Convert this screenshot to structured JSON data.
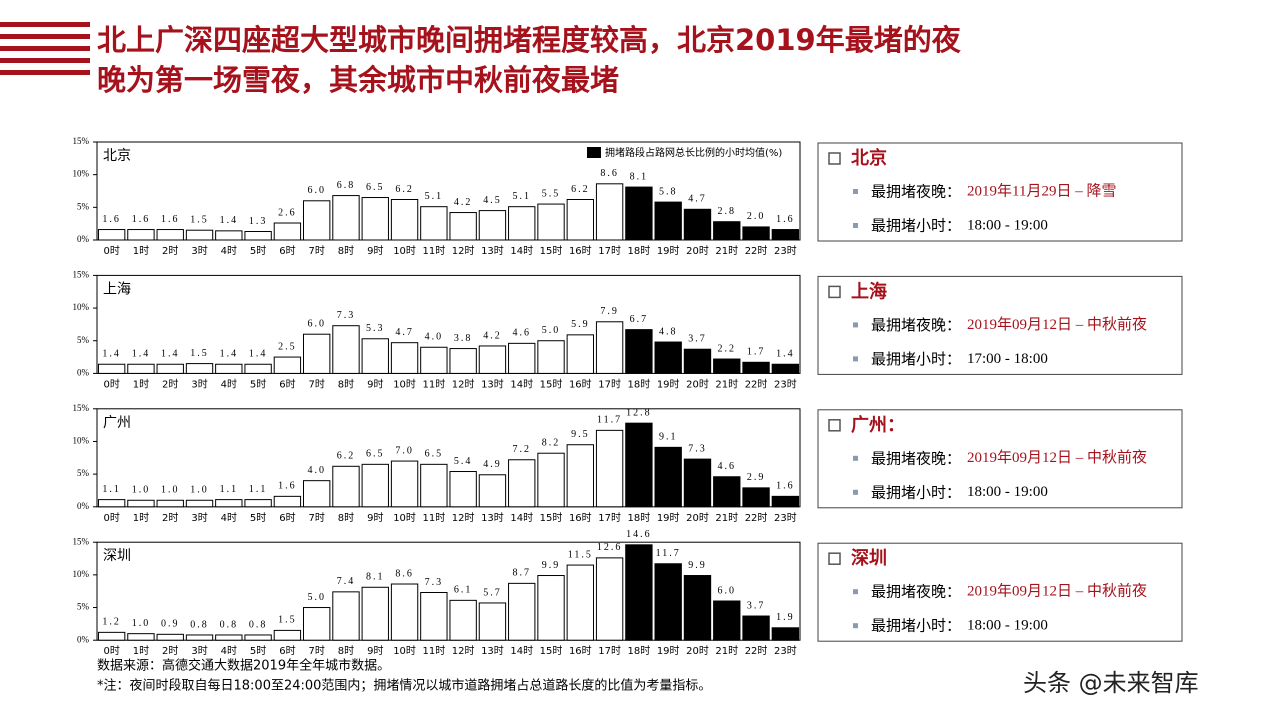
{
  "title_lines": [
    "北上广深四座超大型城市晚间拥堵程度较高，北京2019年最堵的夜",
    "晚为第一场雪夜，其余城市中秋前夜最堵"
  ],
  "chart_data": [
    {
      "type": "bar",
      "label": "北京",
      "legend": "拥堵路段占路网总长比例的小时均值(%)",
      "categories": [
        "0时",
        "1时",
        "2时",
        "3时",
        "4时",
        "5时",
        "6时",
        "7时",
        "8时",
        "9时",
        "10时",
        "11时",
        "12时",
        "13时",
        "14时",
        "15时",
        "16时",
        "17时",
        "18时",
        "19时",
        "20时",
        "21时",
        "22时",
        "23时"
      ],
      "values": [
        1.6,
        1.6,
        1.6,
        1.5,
        1.4,
        1.3,
        2.6,
        6.0,
        6.8,
        6.5,
        6.2,
        5.1,
        4.2,
        4.5,
        5.1,
        5.5,
        6.2,
        8.6,
        8.1,
        5.8,
        4.7,
        2.8,
        2.0,
        1.6
      ],
      "value_labels": [
        "1.6",
        "1.6",
        "1.6",
        "1.5",
        "1.4",
        "1.3",
        "2.6",
        "6.0",
        "6.8",
        "6.5",
        "6.2",
        "5.1",
        "4.2",
        "4.5",
        "5.1",
        "5.5",
        "6.2",
        "8.6",
        "8.1",
        "5.8",
        "4.7",
        "2.8",
        "2.0",
        "1.6"
      ],
      "colors": [
        "#fff",
        "#fff",
        "#fff",
        "#fff",
        "#fff",
        "#fff",
        "#fff",
        "#fff",
        "#fff",
        "#fff",
        "#fff",
        "#fff",
        "#fff",
        "#fff",
        "#fff",
        "#fff",
        "#fff",
        "#fff",
        "#000",
        "#000",
        "#000",
        "#000",
        "#000",
        "#000"
      ],
      "ylim": [
        0,
        15
      ],
      "yticks": [
        {
          "value": 0,
          "label": "0%"
        },
        {
          "value": 5,
          "label": "5%"
        },
        {
          "value": 10,
          "label": "10%"
        },
        {
          "value": 15,
          "label": "15%"
        }
      ]
    },
    {
      "type": "bar",
      "label": "上海",
      "categories": [
        "0时",
        "1时",
        "2时",
        "3时",
        "4时",
        "5时",
        "6时",
        "7时",
        "8时",
        "9时",
        "10时",
        "11时",
        "12时",
        "13时",
        "14时",
        "15时",
        "16时",
        "17时",
        "18时",
        "19时",
        "20时",
        "21时",
        "22时",
        "23时"
      ],
      "values": [
        1.4,
        1.4,
        1.4,
        1.5,
        1.4,
        1.4,
        2.5,
        6.0,
        7.3,
        5.3,
        4.7,
        4.0,
        3.8,
        4.2,
        4.6,
        5.0,
        5.9,
        7.9,
        6.7,
        4.8,
        3.7,
        2.2,
        1.7,
        1.4
      ],
      "value_labels": [
        "1.4",
        "1.4",
        "1.4",
        "1.5",
        "1.4",
        "1.4",
        "2.5",
        "6.0",
        "7.3",
        "5.3",
        "4.7",
        "4.0",
        "3.8",
        "4.2",
        "4.6",
        "5.0",
        "5.9",
        "7.9",
        "6.7",
        "4.8",
        "3.7",
        "2.2",
        "1.7",
        "1.4"
      ],
      "colors": [
        "#fff",
        "#fff",
        "#fff",
        "#fff",
        "#fff",
        "#fff",
        "#fff",
        "#fff",
        "#fff",
        "#fff",
        "#fff",
        "#fff",
        "#fff",
        "#fff",
        "#fff",
        "#fff",
        "#fff",
        "#fff",
        "#000",
        "#000",
        "#000",
        "#000",
        "#000",
        "#000"
      ],
      "ylim": [
        0,
        15
      ],
      "yticks": [
        {
          "value": 0,
          "label": "0%"
        },
        {
          "value": 5,
          "label": "5%"
        },
        {
          "value": 10,
          "label": "10%"
        },
        {
          "value": 15,
          "label": "15%"
        }
      ]
    },
    {
      "type": "bar",
      "label": "广州",
      "categories": [
        "0时",
        "1时",
        "2时",
        "3时",
        "4时",
        "5时",
        "6时",
        "7时",
        "8时",
        "9时",
        "10时",
        "11时",
        "12时",
        "13时",
        "14时",
        "15时",
        "16时",
        "17时",
        "18时",
        "19时",
        "20时",
        "21时",
        "22时",
        "23时"
      ],
      "values": [
        1.1,
        1.0,
        1.0,
        1.0,
        1.1,
        1.1,
        1.6,
        4.0,
        6.2,
        6.5,
        7.0,
        6.5,
        5.4,
        4.9,
        7.2,
        8.2,
        9.5,
        11.7,
        12.8,
        9.1,
        7.3,
        4.6,
        2.9,
        1.6
      ],
      "value_labels": [
        "1.1",
        "1.0",
        "1.0",
        "1.0",
        "1.1",
        "1.1",
        "1.6",
        "4.0",
        "6.2",
        "6.5",
        "7.0",
        "6.5",
        "5.4",
        "4.9",
        "7.2",
        "8.2",
        "9.5",
        "11.7",
        "12.8",
        "9.1",
        "7.3",
        "4.6",
        "2.9",
        "1.6"
      ],
      "colors": [
        "#fff",
        "#fff",
        "#fff",
        "#fff",
        "#fff",
        "#fff",
        "#fff",
        "#fff",
        "#fff",
        "#fff",
        "#fff",
        "#fff",
        "#fff",
        "#fff",
        "#fff",
        "#fff",
        "#fff",
        "#fff",
        "#000",
        "#000",
        "#000",
        "#000",
        "#000",
        "#000"
      ],
      "ylim": [
        0,
        15
      ],
      "yticks": [
        {
          "value": 0,
          "label": "0%"
        },
        {
          "value": 5,
          "label": "5%"
        },
        {
          "value": 10,
          "label": "10%"
        },
        {
          "value": 15,
          "label": "15%"
        }
      ]
    },
    {
      "type": "bar",
      "label": "深圳",
      "categories": [
        "0时",
        "1时",
        "2时",
        "3时",
        "4时",
        "5时",
        "6时",
        "7时",
        "8时",
        "9时",
        "10时",
        "11时",
        "12时",
        "13时",
        "14时",
        "15时",
        "16时",
        "17时",
        "18时",
        "19时",
        "20时",
        "21时",
        "22时",
        "23时"
      ],
      "values": [
        1.2,
        1.0,
        0.9,
        0.8,
        0.8,
        0.8,
        1.5,
        5.0,
        7.4,
        8.1,
        8.6,
        7.3,
        6.1,
        5.7,
        8.7,
        9.9,
        11.5,
        12.6,
        14.6,
        11.7,
        9.9,
        6.0,
        3.7,
        1.9
      ],
      "value_labels": [
        "1.2",
        "1.0",
        "0.9",
        "0.8",
        "0.8",
        "0.8",
        "1.5",
        "5.0",
        "7.4",
        "8.1",
        "8.6",
        "7.3",
        "6.1",
        "5.7",
        "8.7",
        "9.9",
        "11.5",
        "12.6",
        "14.6",
        "11.7",
        "9.9",
        "6.0",
        "3.7",
        "1.9"
      ],
      "colors": [
        "#fff",
        "#fff",
        "#fff",
        "#fff",
        "#fff",
        "#fff",
        "#fff",
        "#fff",
        "#fff",
        "#fff",
        "#fff",
        "#fff",
        "#fff",
        "#fff",
        "#fff",
        "#fff",
        "#fff",
        "#fff",
        "#000",
        "#000",
        "#000",
        "#000",
        "#000",
        "#000"
      ],
      "ylim": [
        0,
        15
      ],
      "yticks": [
        {
          "value": 0,
          "label": "0%"
        },
        {
          "value": 5,
          "label": "5%"
        },
        {
          "value": 10,
          "label": "10%"
        },
        {
          "value": 15,
          "label": "15%"
        }
      ]
    }
  ],
  "panels": [
    {
      "city": "北京",
      "night_label": "最拥堵夜晚：",
      "night": "2019年11月29日 – 降雪",
      "hour_label": "最拥堵小时：",
      "hour": "18:00 - 19:00"
    },
    {
      "city": "上海",
      "night_label": "最拥堵夜晚：",
      "night": "2019年09月12日 – 中秋前夜",
      "hour_label": "最拥堵小时：",
      "hour": "17:00 - 18:00"
    },
    {
      "city": "广州：",
      "night_label": "最拥堵夜晚：",
      "night": "2019年09月12日 – 中秋前夜",
      "hour_label": "最拥堵小时：",
      "hour": "18:00 - 19:00"
    },
    {
      "city": "深圳",
      "night_label": "最拥堵夜晚：",
      "night": "2019年09月12日 – 中秋前夜",
      "hour_label": "最拥堵小时：",
      "hour": "18:00 - 19:00"
    }
  ],
  "notes": [
    "数据来源：高德交通大数据2019年全年城市数据。",
    "*注：夜间时段取自每日18:00至24:00范围内；拥堵情况以城市道路拥堵占总道路长度的比值为考量指标。"
  ],
  "watermark": "头条 @未来智库"
}
